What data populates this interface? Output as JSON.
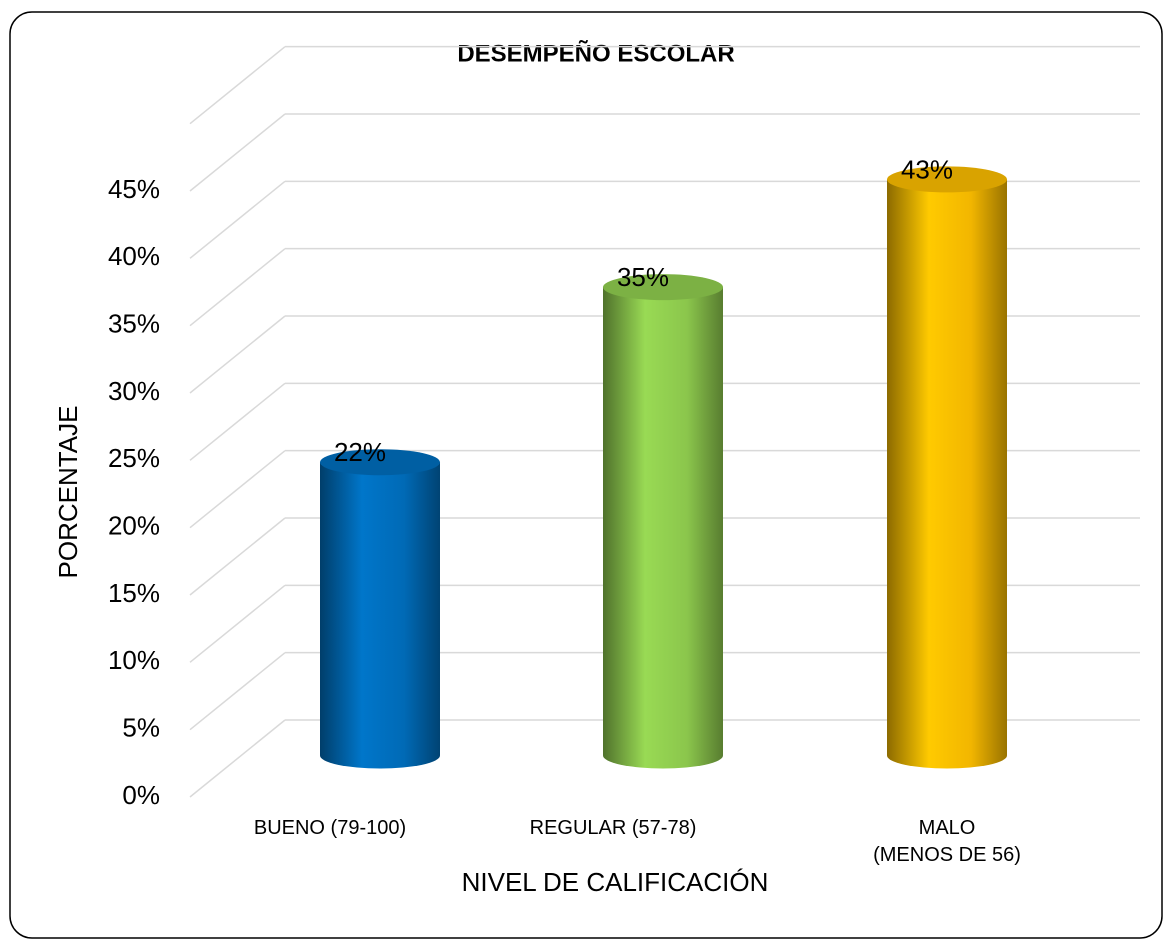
{
  "chart_data": {
    "type": "bar",
    "title": "DESEMPEÑO ESCOLAR",
    "x_label": "NIVEL DE CALIFICACIÓN",
    "y_label": "PORCENTAJE",
    "categories": [
      "BUENO (79-100)",
      "REGULAR (57-78)",
      "MALO\n(MENOS DE 56)"
    ],
    "values": [
      22,
      35,
      43
    ],
    "value_labels": [
      "22%",
      "35%",
      "43%"
    ],
    "colors": [
      "#0070c0",
      "#92d050",
      "#ffc000"
    ],
    "ylim": [
      0,
      45
    ],
    "yticks": [
      {
        "value": 0,
        "label": "0%"
      },
      {
        "value": 5,
        "label": "5%"
      },
      {
        "value": 10,
        "label": "10%"
      },
      {
        "value": 15,
        "label": "15%"
      },
      {
        "value": 20,
        "label": "20%"
      },
      {
        "value": 25,
        "label": "25%"
      },
      {
        "value": 30,
        "label": "30%"
      },
      {
        "value": 35,
        "label": "35%"
      },
      {
        "value": 40,
        "label": "40%"
      },
      {
        "value": 45,
        "label": "45%"
      }
    ],
    "grid": true
  }
}
